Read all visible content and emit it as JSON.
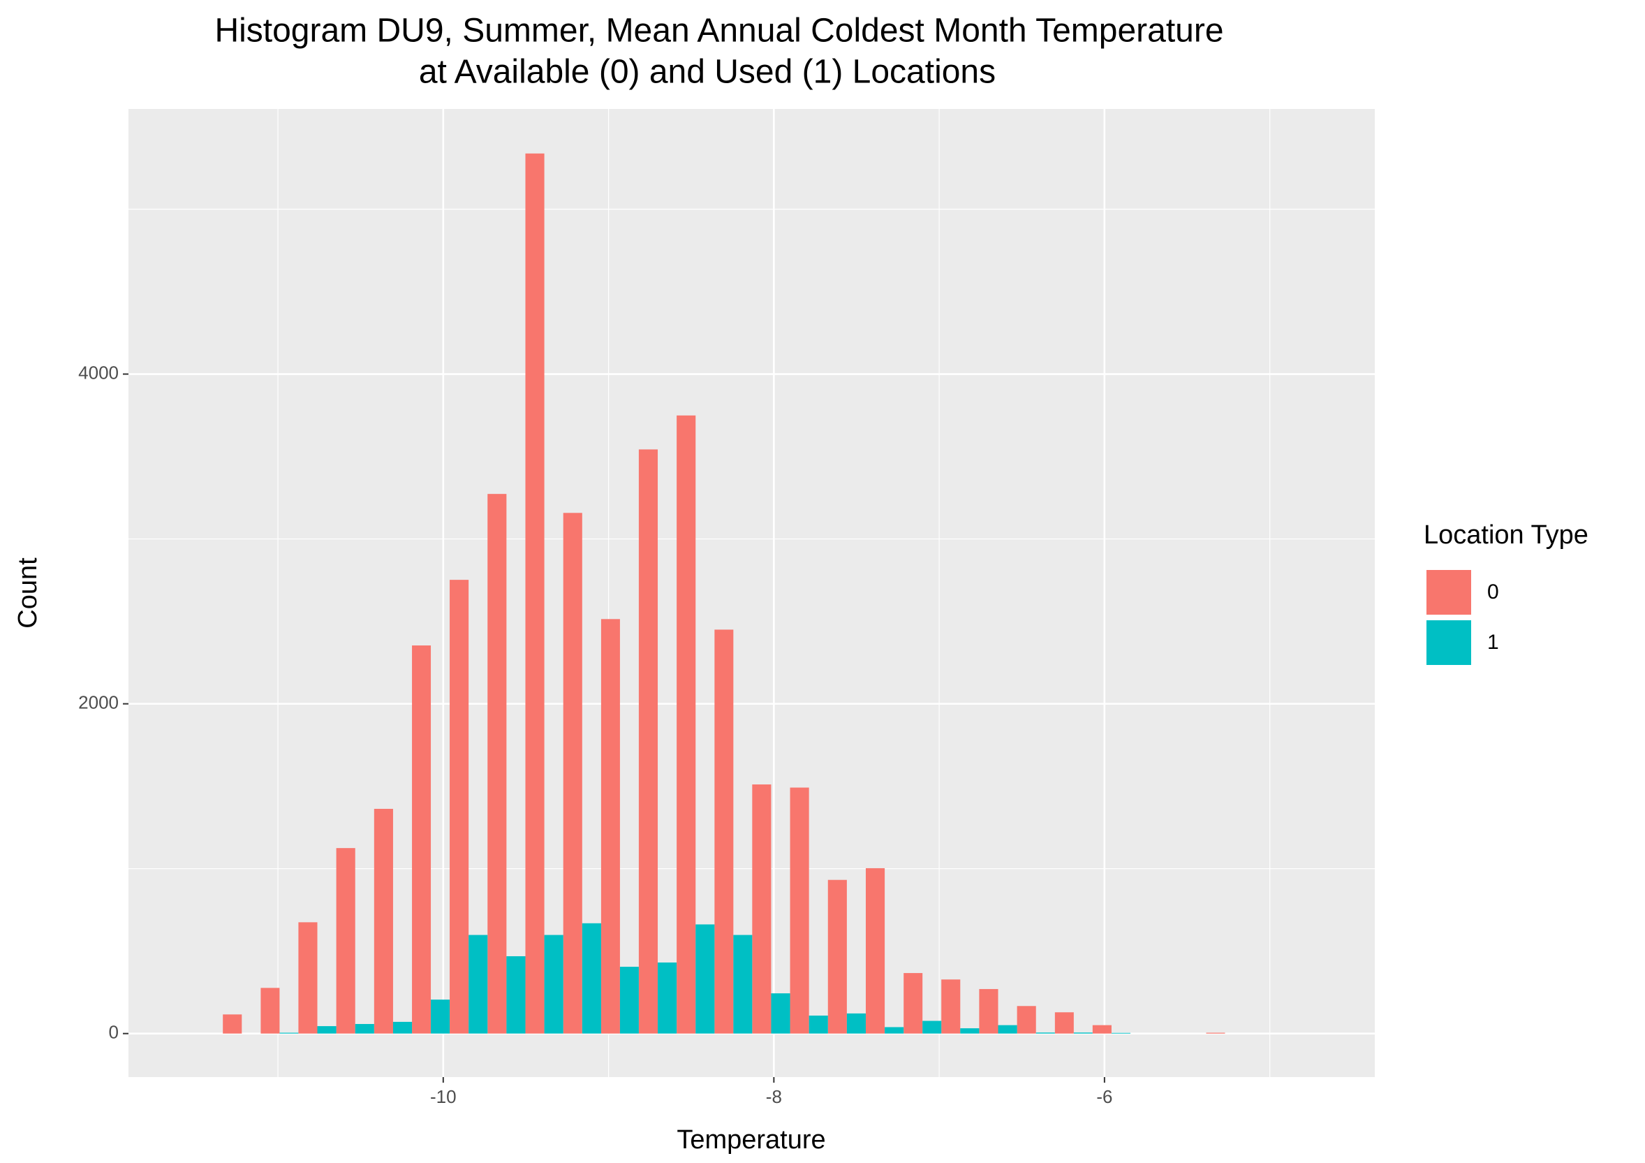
{
  "chart_data": {
    "type": "histogram",
    "title": [
      "Histogram DU9, Summer, Mean Annual Coldest Month Temperature",
      "at Available (0) and Used (1) Locations"
    ],
    "x_label": "Temperature",
    "y_label": "Count",
    "legend_title": "Location Type",
    "legend_position": "right",
    "bins": [
      -11.333,
      -11.104,
      -10.876,
      -10.647,
      -10.418,
      -10.189,
      -9.961,
      -9.732,
      -9.503,
      -9.274,
      -9.045,
      -8.817,
      -8.588,
      -8.359,
      -8.131,
      -7.902,
      -7.673,
      -7.444,
      -7.215,
      -6.987,
      -6.758,
      -6.529,
      -6.3,
      -6.072,
      -5.843,
      -5.614,
      -5.385,
      -5.157,
      -4.928,
      -4.699,
      -4.47
    ],
    "series": [
      {
        "name": "0",
        "color": "#F8766D",
        "values": [
          116,
          277,
          675,
          1125,
          1363,
          2354,
          2752,
          3273,
          5338,
          3158,
          2514,
          3543,
          3749,
          2450,
          1511,
          1492,
          932,
          1003,
          367,
          328,
          270,
          167,
          129,
          51,
          0,
          0,
          5,
          0,
          0,
          0
        ]
      },
      {
        "name": "1",
        "color": "#00BFC4",
        "values": [
          0,
          5,
          45,
          58,
          71,
          206,
          598,
          469,
          598,
          669,
          405,
          431,
          662,
          598,
          244,
          109,
          122,
          39,
          77,
          32,
          51,
          6,
          6,
          4,
          0,
          0,
          0,
          0,
          0,
          0
        ]
      }
    ],
    "xlim": [
      -11.904,
      -4.365
    ],
    "xticks": [
      -10,
      -8,
      -6
    ],
    "x_minor_grid": [
      -11,
      -9,
      -7,
      -5
    ],
    "ylim": [
      -264,
      5608
    ],
    "yticks": [
      0,
      2000,
      4000
    ],
    "y_minor_grid": [
      1000,
      3000,
      5000
    ],
    "grid": true
  }
}
